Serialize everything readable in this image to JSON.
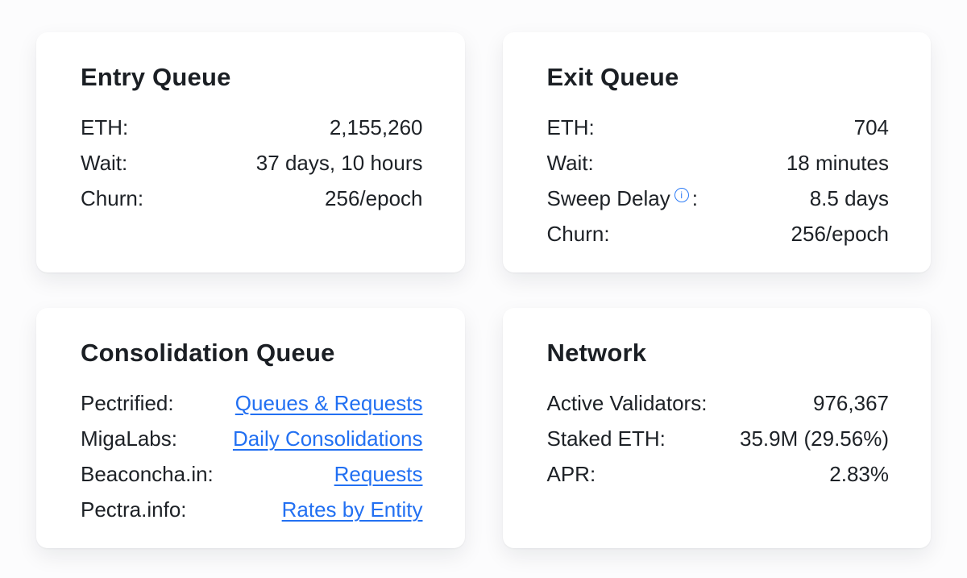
{
  "colors": {
    "page_background": "#fcfcfd",
    "card_background": "#ffffff",
    "text": "#1d2126",
    "link": "#2270f2",
    "info_icon": "#2e7cf6"
  },
  "icons": {
    "info_glyph": "i"
  },
  "cards": [
    {
      "title": "Entry Queue",
      "rows": [
        {
          "label": "ETH:",
          "value": "2,155,260"
        },
        {
          "label": "Wait:",
          "value": "37 days, 10 hours"
        },
        {
          "label": "Churn:",
          "value": "256/epoch"
        }
      ]
    },
    {
      "title": "Exit Queue",
      "rows": [
        {
          "label": "ETH:",
          "value": "704"
        },
        {
          "label": "Wait:",
          "value": "18 minutes"
        },
        {
          "label": "Sweep Delay",
          "label_suffix": ":",
          "has_info_icon": true,
          "value": "8.5 days"
        },
        {
          "label": "Churn:",
          "value": "256/epoch"
        }
      ]
    },
    {
      "title": "Consolidation Queue",
      "rows": [
        {
          "label": "Pectrified:",
          "link": "Queues & Requests"
        },
        {
          "label": "MigaLabs:",
          "link": "Daily Consolidations"
        },
        {
          "label": "Beaconcha.in:",
          "link": "Requests"
        },
        {
          "label": "Pectra.info:",
          "link": "Rates by Entity"
        }
      ]
    },
    {
      "title": "Network",
      "rows": [
        {
          "label": "Active Validators:",
          "value": "976,367"
        },
        {
          "label": "Staked ETH:",
          "value": "35.9M (29.56%)"
        },
        {
          "label": "APR:",
          "value": "2.83%"
        }
      ]
    }
  ]
}
